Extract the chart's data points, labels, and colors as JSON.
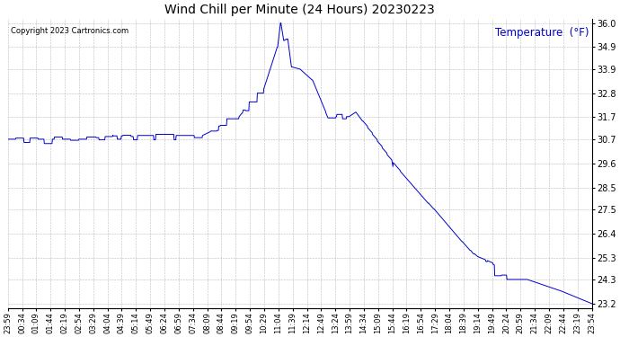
{
  "title": "Wind Chill per Minute (24 Hours) 20230223",
  "copyright_text": "Copyright 2023 Cartronics.com",
  "legend_label": "Temperature  (°F)",
  "line_color": "#0000cc",
  "background_color": "#ffffff",
  "grid_color": "#aaaaaa",
  "ylim": [
    23.0,
    36.2
  ],
  "yticks": [
    23.2,
    24.3,
    25.3,
    26.4,
    27.5,
    28.5,
    29.6,
    30.7,
    31.7,
    32.8,
    33.9,
    34.9,
    36.0
  ],
  "xtick_labels": [
    "23:59",
    "00:34",
    "01:09",
    "01:44",
    "02:19",
    "02:54",
    "03:29",
    "04:04",
    "04:39",
    "05:14",
    "05:49",
    "06:24",
    "06:59",
    "07:34",
    "08:09",
    "08:44",
    "09:19",
    "09:54",
    "10:29",
    "11:04",
    "11:39",
    "12:14",
    "12:49",
    "13:24",
    "13:59",
    "14:34",
    "15:09",
    "15:44",
    "16:19",
    "16:54",
    "17:29",
    "18:04",
    "18:39",
    "19:14",
    "19:49",
    "20:24",
    "20:59",
    "21:34",
    "22:09",
    "22:44",
    "23:19",
    "23:54"
  ]
}
